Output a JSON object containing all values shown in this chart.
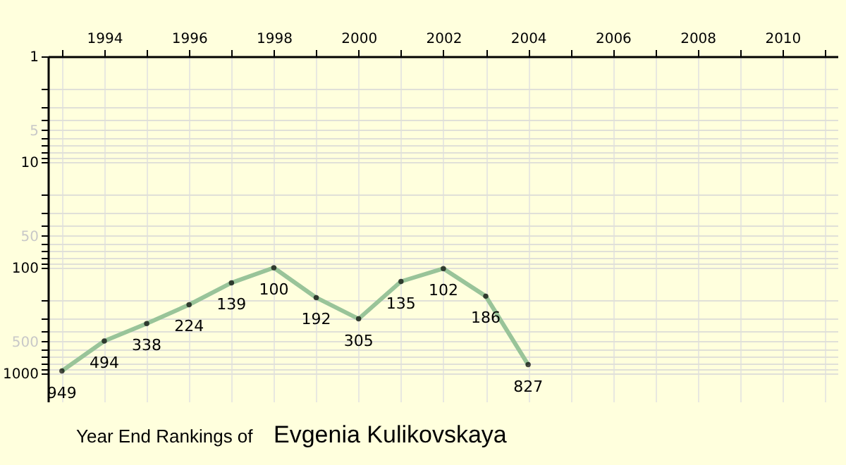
{
  "chart_data": {
    "type": "line",
    "title": "Year End Rankings of",
    "subtitle": "Evgenia Kulikovskaya",
    "x": [
      1993,
      1994,
      1995,
      1996,
      1997,
      1998,
      1999,
      2000,
      2001,
      2002,
      2003,
      2004
    ],
    "values": [
      949,
      494,
      338,
      224,
      139,
      100,
      192,
      305,
      135,
      102,
      186,
      827
    ],
    "color": "#99c499",
    "marker": "circle",
    "line_style": "solid",
    "data_labels": true,
    "log": true,
    "grid": true,
    "xlim": [
      1992.67,
      2011.3
    ],
    "xticks": [
      {
        "value": 1993,
        "label": null
      },
      1994,
      {
        "value": 1995,
        "label": null
      },
      1996,
      {
        "value": 1997,
        "label": null
      },
      1998,
      {
        "value": 1999,
        "label": null
      },
      2000,
      {
        "value": 2001,
        "label": null
      },
      2002,
      {
        "value": 2003,
        "label": null
      },
      2004,
      {
        "value": 2005,
        "label": null
      },
      2006,
      {
        "value": 2007,
        "label": null
      },
      2008,
      {
        "value": 2009,
        "label": null
      },
      2010,
      {
        "value": 2011,
        "label": null
      }
    ],
    "ylim": [
      1850,
      1
    ],
    "yticks": [
      1,
      {
        "value": 2,
        "label": null
      },
      {
        "value": 3,
        "label": null
      },
      {
        "value": 4,
        "label": null
      },
      5,
      {
        "value": 6,
        "label": null
      },
      {
        "value": 7,
        "label": null
      },
      {
        "value": 8,
        "label": null
      },
      {
        "value": 9,
        "label": null
      },
      10,
      {
        "value": 20,
        "label": null
      },
      {
        "value": 30,
        "label": null
      },
      {
        "value": 40,
        "label": null
      },
      50,
      {
        "value": 60,
        "label": null
      },
      {
        "value": 70,
        "label": null
      },
      {
        "value": 80,
        "label": null
      },
      {
        "value": 90,
        "label": null
      },
      100,
      {
        "value": 200,
        "label": null
      },
      {
        "value": 300,
        "label": null
      },
      {
        "value": 400,
        "label": null
      },
      500,
      {
        "value": 600,
        "label": null
      },
      {
        "value": 700,
        "label": null
      },
      {
        "value": 800,
        "label": null
      },
      {
        "value": 900,
        "label": null
      },
      1000
    ]
  }
}
